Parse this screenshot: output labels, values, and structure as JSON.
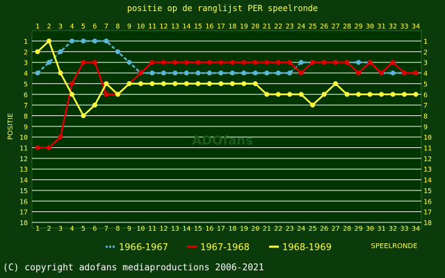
{
  "chart_data": {
    "type": "line",
    "title": "positie op de ranglijst PER speelronde",
    "ylabel": "POSITIE",
    "xlabel": "SPEELRONDE",
    "watermark": "ADOfans",
    "copyright": "(C) copyright adofans mediaproductions 2006-2021",
    "x": [
      1,
      2,
      3,
      4,
      5,
      6,
      7,
      8,
      9,
      10,
      11,
      12,
      13,
      14,
      15,
      16,
      17,
      18,
      19,
      20,
      21,
      22,
      23,
      24,
      25,
      26,
      27,
      28,
      29,
      30,
      31,
      32,
      33,
      34
    ],
    "ylim": [
      1,
      18
    ],
    "y_inverted": true,
    "grid": true,
    "legend_position": "bottom",
    "colors": {
      "background": "#0b3a0b",
      "plot_background": "#003400",
      "grid": "#ffffff",
      "text": "#ffff40"
    },
    "series": [
      {
        "name": "1966-1967",
        "color": "#5bb8d8",
        "dashed": true,
        "values": [
          4,
          3,
          2,
          1,
          1,
          1,
          1,
          2,
          3,
          4,
          4,
          4,
          4,
          4,
          4,
          4,
          4,
          4,
          4,
          4,
          4,
          4,
          4,
          3,
          3,
          3,
          3,
          3,
          3,
          3,
          4,
          4,
          4,
          4
        ]
      },
      {
        "name": "1967-1968",
        "color": "#e00000",
        "dashed": false,
        "values": [
          11,
          11,
          10,
          5,
          3,
          3,
          6,
          6,
          5,
          4,
          3,
          3,
          3,
          3,
          3,
          3,
          3,
          3,
          3,
          3,
          3,
          3,
          3,
          4,
          3,
          3,
          3,
          3,
          4,
          3,
          4,
          3,
          4,
          4
        ]
      },
      {
        "name": "1968-1969",
        "color": "#ffff40",
        "dashed": false,
        "values": [
          2,
          1,
          4,
          6,
          8,
          7,
          5,
          6,
          5,
          5,
          5,
          5,
          5,
          5,
          5,
          5,
          5,
          5,
          5,
          5,
          6,
          6,
          6,
          6,
          7,
          6,
          5,
          6,
          6,
          6,
          6,
          6,
          6,
          6
        ]
      }
    ]
  }
}
